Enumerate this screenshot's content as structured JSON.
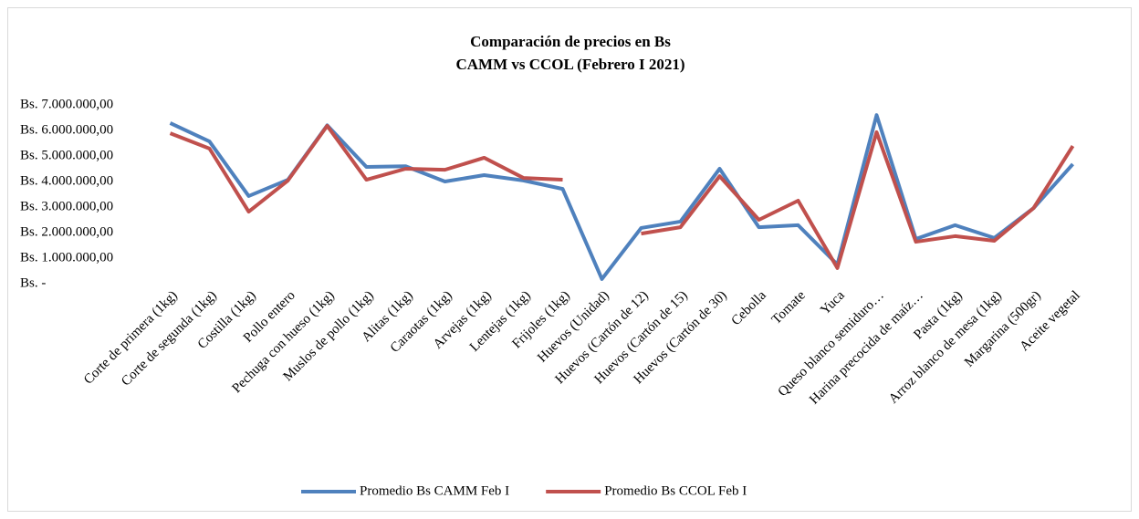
{
  "chart_data": {
    "type": "line",
    "title": [
      "Comparación de precios en Bs",
      "CAMM vs CCOL (Febrero I 2021)"
    ],
    "categories": [
      "Corte de primera (1kg)",
      "Corte de segunda (1kg)",
      "Costilla (1kg)",
      "Pollo entero",
      "Pechuga con hueso (1kg)",
      "Muslos de pollo (1kg)",
      "Alitas (1kg)",
      "Caraotas (1kg)",
      "Arvejas (1kg)",
      "Lentejas (1kg)",
      "Frijoles (1kg)",
      "Huevos (Unidad)",
      "Huevos (Cartón de 12)",
      "Huevos (Cartón de 15)",
      "Huevos (Cartón de 30)",
      "Cebolla",
      "Tomate",
      "Yuca",
      "Queso blanco semiduro…",
      "Harina precocida de maíz…",
      "Pasta (1kg)",
      "Arroz blanco de mesa (1kg)",
      "Margarina (500gr)",
      "Aceite vegetal"
    ],
    "series": [
      {
        "name": "Promedio Bs CAMM Feb I",
        "color": "#4f81bd",
        "values": [
          6290000,
          5570000,
          3430000,
          4070000,
          6200000,
          4570000,
          4600000,
          4000000,
          4250000,
          4040000,
          3710000,
          180000,
          2180000,
          2430000,
          4500000,
          2210000,
          2290000,
          750000,
          6600000,
          1750000,
          2290000,
          1790000,
          2960000,
          4680000
        ]
      },
      {
        "name": "Promedio Bs CCOL Feb I",
        "color": "#c0504d",
        "values": [
          5890000,
          5290000,
          2820000,
          4040000,
          6180000,
          4070000,
          4500000,
          4460000,
          4930000,
          4140000,
          4070000,
          null,
          1960000,
          2210000,
          4210000,
          2500000,
          3250000,
          610000,
          5930000,
          1640000,
          1860000,
          1680000,
          2960000,
          5390000
        ]
      }
    ],
    "ylim": [
      0,
      7000000
    ],
    "yticks": [
      {
        "value": 0,
        "label": "Bs. -"
      },
      {
        "value": 1000000,
        "label": "Bs. 1.000.000,00"
      },
      {
        "value": 2000000,
        "label": "Bs. 2.000.000,00"
      },
      {
        "value": 3000000,
        "label": "Bs. 3.000.000,00"
      },
      {
        "value": 4000000,
        "label": "Bs. 4.000.000,00"
      },
      {
        "value": 5000000,
        "label": "Bs. 5.000.000,00"
      },
      {
        "value": 6000000,
        "label": "Bs. 6.000.000,00"
      },
      {
        "value": 7000000,
        "label": "Bs. 7.000.000,00"
      }
    ],
    "grid": false,
    "legend": "bottom"
  }
}
